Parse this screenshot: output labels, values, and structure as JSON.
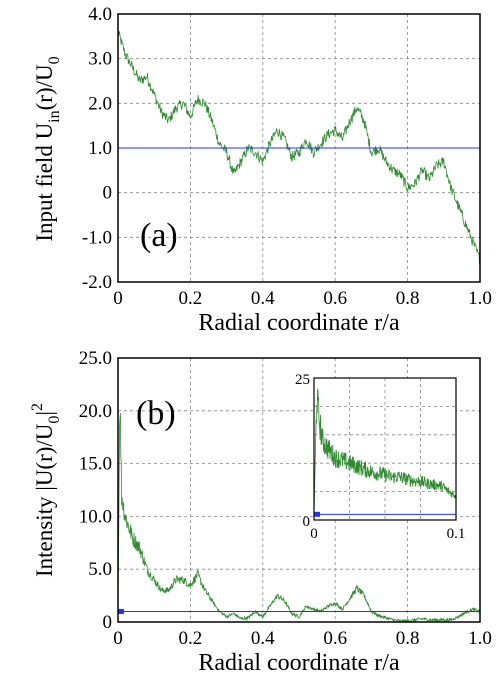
{
  "chart_data": [
    {
      "type": "line",
      "panel_label": "(a)",
      "xlabel": "Radial coordinate r/a",
      "ylabel": "Input field  U_in(r)/U_0",
      "ylabel_parts": {
        "main": "Input field  U",
        "sub1": "in",
        "mid": "(r)/U",
        "sub2": "0"
      },
      "xlim": [
        0,
        1.0
      ],
      "ylim": [
        -2.0,
        4.0
      ],
      "xticks": [
        "0",
        "0.2",
        "0.4",
        "0.6",
        "0.8",
        "1.0"
      ],
      "xtick_values": [
        0,
        0.2,
        0.4,
        0.6,
        0.8,
        1.0
      ],
      "yticks": [
        "-2.0",
        "-1.0",
        "0",
        "1.0",
        "2.0",
        "3.0",
        "4.0"
      ],
      "ytick_values": [
        -2,
        -1,
        0,
        1,
        2,
        3,
        4
      ],
      "grid": true,
      "series": [
        {
          "color": "#2e8b2e",
          "x": [
            0,
            0.02,
            0.04,
            0.06,
            0.08,
            0.1,
            0.12,
            0.14,
            0.16,
            0.18,
            0.2,
            0.22,
            0.24,
            0.26,
            0.28,
            0.3,
            0.32,
            0.34,
            0.36,
            0.38,
            0.4,
            0.42,
            0.44,
            0.46,
            0.48,
            0.5,
            0.52,
            0.54,
            0.56,
            0.58,
            0.6,
            0.62,
            0.64,
            0.66,
            0.68,
            0.7,
            0.72,
            0.74,
            0.76,
            0.78,
            0.8,
            0.82,
            0.84,
            0.86,
            0.88,
            0.9,
            0.92,
            0.94,
            0.96,
            0.98,
            1.0
          ],
          "y": [
            3.6,
            3.1,
            2.8,
            2.5,
            2.6,
            2.2,
            1.8,
            1.6,
            1.9,
            2.0,
            1.7,
            2.1,
            2.0,
            1.6,
            1.1,
            0.9,
            0.4,
            0.7,
            1.0,
            0.9,
            0.7,
            1.1,
            1.4,
            1.2,
            0.8,
            0.9,
            1.2,
            0.9,
            1.1,
            1.3,
            1.4,
            1.2,
            1.6,
            1.9,
            1.6,
            0.9,
            1.0,
            0.7,
            0.5,
            0.4,
            0.1,
            0.2,
            0.5,
            0.3,
            0.6,
            0.7,
            0.1,
            -0.3,
            -0.7,
            -1.1,
            -1.5
          ]
        },
        {
          "color": "#2233ff",
          "x": [
            0,
            1.0
          ],
          "y": [
            1.0,
            1.0
          ]
        }
      ]
    },
    {
      "type": "line",
      "panel_label": "(b)",
      "xlabel": "Radial coordinate r/a",
      "ylabel": "Intensity |U(r)/U_0|^2",
      "ylabel_parts": {
        "main": "Intensity |U(r)/U",
        "sub": "0",
        "tail": "|",
        "sup": "2"
      },
      "xlim": [
        0,
        1.0
      ],
      "ylim": [
        0,
        25.0
      ],
      "xticks": [
        "0",
        "0.2",
        "0.4",
        "0.6",
        "0.8",
        "1.0"
      ],
      "xtick_values": [
        0,
        0.2,
        0.4,
        0.6,
        0.8,
        1.0
      ],
      "yticks": [
        "0",
        "5.0",
        "10.0",
        "15.0",
        "20.0",
        "25.0"
      ],
      "ytick_values": [
        0,
        5,
        10,
        15,
        20,
        25
      ],
      "grid": true,
      "series": [
        {
          "color": "#2e8b2e",
          "x": [
            0,
            0.005,
            0.01,
            0.02,
            0.03,
            0.04,
            0.06,
            0.08,
            0.1,
            0.12,
            0.14,
            0.16,
            0.18,
            0.2,
            0.22,
            0.24,
            0.26,
            0.28,
            0.3,
            0.32,
            0.34,
            0.36,
            0.38,
            0.4,
            0.42,
            0.44,
            0.46,
            0.48,
            0.5,
            0.52,
            0.54,
            0.56,
            0.58,
            0.6,
            0.62,
            0.64,
            0.66,
            0.68,
            0.7,
            0.72,
            0.74,
            0.76,
            0.78,
            0.8,
            0.82,
            0.84,
            0.86,
            0.88,
            0.9,
            0.92,
            0.94,
            0.96,
            0.98,
            1.0
          ],
          "y": [
            1,
            22,
            12,
            10,
            9,
            8,
            7,
            5,
            4,
            3,
            3,
            4,
            4,
            3.5,
            4.5,
            3,
            2,
            1,
            0.5,
            0.8,
            0.3,
            0.4,
            1,
            0.5,
            1.5,
            2.5,
            2,
            0.8,
            0.5,
            1.5,
            1.2,
            1,
            1.5,
            1.8,
            1.2,
            2.2,
            3.2,
            2.5,
            1,
            0.6,
            0.4,
            0.2,
            0.1,
            0.1,
            0.2,
            0.3,
            0.2,
            0.2,
            0.2,
            0.2,
            0.5,
            0.9,
            1.2,
            1.0
          ]
        },
        {
          "color": "#2233ff",
          "x": [
            0,
            1.0
          ],
          "y": [
            1.0,
            1.0
          ]
        }
      ],
      "inset": {
        "xlim": [
          0,
          0.1
        ],
        "ylim": [
          0,
          25
        ],
        "xticks": [
          "0",
          "0.1"
        ],
        "xtick_values": [
          0,
          0.1
        ],
        "yticks": [
          "0",
          "25"
        ],
        "ytick_values": [
          0,
          25
        ],
        "series": [
          {
            "color": "#2e8b2e",
            "x": [
              0,
              0.002,
              0.004,
              0.006,
              0.01,
              0.015,
              0.02,
              0.025,
              0.03,
              0.035,
              0.04,
              0.045,
              0.05,
              0.055,
              0.06,
              0.065,
              0.07,
              0.075,
              0.08,
              0.085,
              0.09,
              0.095,
              0.1
            ],
            "y": [
              1,
              22,
              17,
              14,
              12.5,
              11,
              10.5,
              10,
              9.5,
              9,
              8.5,
              8.2,
              8,
              7.5,
              7.6,
              7.2,
              6.9,
              6.8,
              6.4,
              6.2,
              6,
              5,
              4.2
            ]
          },
          {
            "color": "#2233ff",
            "x": [
              0,
              0.1
            ],
            "y": [
              1.0,
              1.0
            ]
          }
        ]
      }
    }
  ]
}
